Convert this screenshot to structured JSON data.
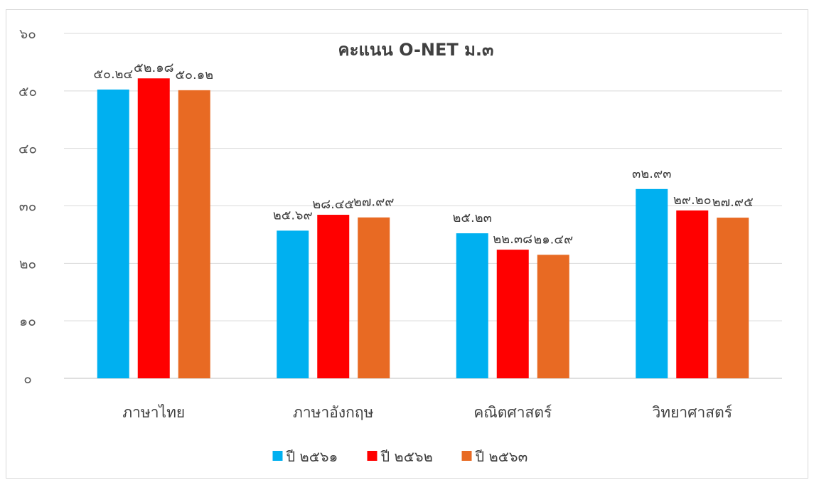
{
  "chart_data": {
    "type": "bar",
    "title": "คะแนน O-NET ม.๓",
    "xlabel": "",
    "ylabel": "",
    "ylim": [
      0,
      60
    ],
    "yticks": [
      "๐",
      "๑๐",
      "๒๐",
      "๓๐",
      "๔๐",
      "๕๐",
      "๖๐"
    ],
    "ytick_values": [
      0,
      10,
      20,
      30,
      40,
      50,
      60
    ],
    "grid": true,
    "legend_position": "bottom",
    "categories": [
      "ภาษาไทย",
      "ภาษาอังกฤษ",
      "คณิตศาสตร์",
      "วิทยาศาสตร์"
    ],
    "series": [
      {
        "name": "ปี ๒๕๖๑",
        "color": "#00b0f0",
        "values": [
          50.24,
          25.69,
          25.23,
          32.93
        ],
        "labels": [
          "๕๐.๒๔",
          "๒๕.๖๙",
          "๒๕.๒๓",
          "๓๒.๙๓"
        ]
      },
      {
        "name": "ปี ๒๕๖๒",
        "color": "#ff0000",
        "values": [
          52.18,
          28.45,
          22.38,
          29.2
        ],
        "labels": [
          "๕๒.๑๘",
          "๒๘.๔๕",
          "๒๒.๓๘",
          "๒๙.๒๐"
        ]
      },
      {
        "name": "ปี ๒๕๖๓",
        "color": "#e86a23",
        "values": [
          50.12,
          27.99,
          21.49,
          27.95
        ],
        "labels": [
          "๕๐.๑๒",
          "๒๗.๙๙",
          "๒๑.๔๙",
          "๒๗.๙๕"
        ]
      }
    ]
  }
}
